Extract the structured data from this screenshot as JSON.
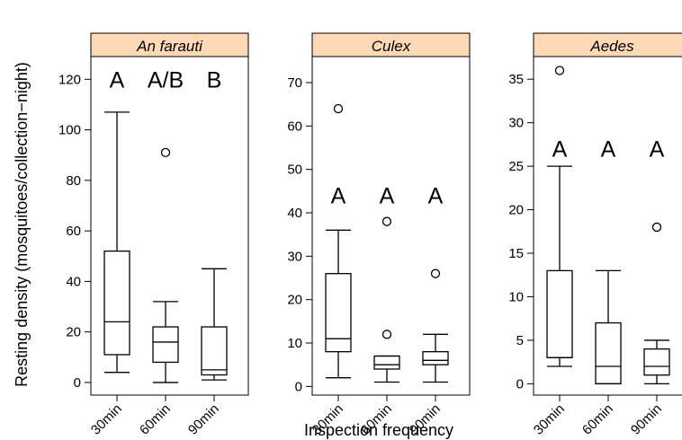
{
  "chart_data": {
    "type": "box",
    "ylabel": "Resting density (mosquitoes/collection−night)",
    "xlabel": "Inspection frequency",
    "categories": [
      "30min",
      "60min",
      "90min"
    ],
    "strip_color": "#fdd9b5",
    "panels": [
      {
        "title": "An farauti",
        "ylim": [
          -5,
          129
        ],
        "yticks": [
          0,
          20,
          40,
          60,
          80,
          100,
          120
        ],
        "letters": [
          "A",
          "A/B",
          "B"
        ],
        "letter_y": 120,
        "boxes": [
          {
            "category": "30min",
            "min": 4,
            "q1": 11,
            "median": 24,
            "q3": 52,
            "max": 107,
            "outliers": []
          },
          {
            "category": "60min",
            "min": 0,
            "q1": 8,
            "median": 16,
            "q3": 22,
            "max": 32,
            "outliers": [
              91
            ]
          },
          {
            "category": "90min",
            "min": 1,
            "q1": 3,
            "median": 5,
            "q3": 22,
            "max": 45,
            "outliers": []
          }
        ]
      },
      {
        "title": "Culex",
        "ylim": [
          -2,
          76
        ],
        "yticks": [
          0,
          10,
          20,
          30,
          40,
          50,
          60,
          70
        ],
        "letters": [
          "A",
          "A",
          "A"
        ],
        "letter_y": 44,
        "boxes": [
          {
            "category": "30min",
            "min": 2,
            "q1": 8,
            "median": 11,
            "q3": 26,
            "max": 36,
            "outliers": [
              64
            ]
          },
          {
            "category": "60min",
            "min": 1,
            "q1": 4,
            "median": 5,
            "q3": 7,
            "max": 7,
            "outliers": [
              38,
              12
            ]
          },
          {
            "category": "90min",
            "min": 1,
            "q1": 5,
            "median": 6,
            "q3": 8,
            "max": 12,
            "outliers": [
              26
            ]
          }
        ]
      },
      {
        "title": "Aedes",
        "ylim": [
          -1.3,
          37.6
        ],
        "yticks": [
          0,
          5,
          10,
          15,
          20,
          25,
          30,
          35
        ],
        "letters": [
          "A",
          "A",
          "A"
        ],
        "letter_y": 27,
        "boxes": [
          {
            "category": "30min",
            "min": 2,
            "q1": 3,
            "median": 3,
            "q3": 13,
            "max": 25,
            "outliers": [
              36
            ]
          },
          {
            "category": "60min",
            "min": 0,
            "q1": 0,
            "median": 2,
            "q3": 7,
            "max": 13,
            "outliers": []
          },
          {
            "category": "90min",
            "min": 0,
            "q1": 1,
            "median": 2,
            "q3": 4,
            "max": 5,
            "outliers": [
              18
            ]
          }
        ]
      }
    ]
  }
}
